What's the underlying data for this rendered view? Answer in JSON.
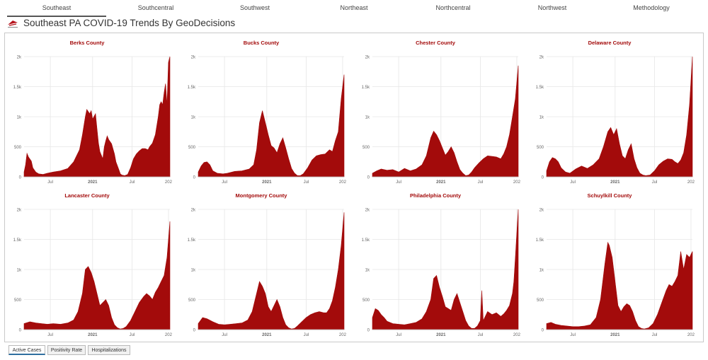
{
  "tabs": [
    {
      "label": "Southeast",
      "active": true
    },
    {
      "label": "Southcentral",
      "active": false
    },
    {
      "label": "Southwest",
      "active": false
    },
    {
      "label": "Northeast",
      "active": false
    },
    {
      "label": "Northcentral",
      "active": false
    },
    {
      "label": "Northwest",
      "active": false
    },
    {
      "label": "Methodology",
      "active": false
    }
  ],
  "header": {
    "title": "Southeast PA COVID-19 Trends By GeoDecisions",
    "logo_icon": "geodecisions-logo-icon"
  },
  "bottom_tabs": [
    {
      "label": "Active Cases",
      "active": true
    },
    {
      "label": "Positivity Rate",
      "active": false
    },
    {
      "label": "Hospitalizations",
      "active": false
    }
  ],
  "colors": {
    "series": "#a30b0b",
    "title": "#a30b0b",
    "grid": "#e6e6e6",
    "tick": "#666666"
  },
  "chart_data": [
    {
      "type": "area",
      "title": "Berks County",
      "x_ticks": [
        "Jul",
        "2021",
        "Jul",
        "202"
      ],
      "y_ticks": [
        "0",
        "500",
        "1k",
        "1.5k",
        "2k"
      ],
      "ylim": [
        0,
        2000
      ],
      "x": [
        0,
        0.01,
        0.02,
        0.03,
        0.05,
        0.06,
        0.08,
        0.1,
        0.13,
        0.16,
        0.2,
        0.25,
        0.3,
        0.34,
        0.38,
        0.4,
        0.42,
        0.43,
        0.45,
        0.46,
        0.47,
        0.49,
        0.5,
        0.51,
        0.52,
        0.54,
        0.55,
        0.56,
        0.57,
        0.58,
        0.6,
        0.62,
        0.63,
        0.65,
        0.66,
        0.67,
        0.69,
        0.71,
        0.73,
        0.75,
        0.77,
        0.79,
        0.81,
        0.83,
        0.85,
        0.86,
        0.88,
        0.9,
        0.92,
        0.93,
        0.94,
        0.95,
        0.96,
        0.97,
        0.98,
        0.99,
        1.0
      ],
      "values": [
        80,
        200,
        390,
        330,
        260,
        150,
        80,
        50,
        40,
        60,
        80,
        100,
        140,
        250,
        450,
        700,
        1000,
        1120,
        1050,
        1100,
        960,
        1050,
        800,
        560,
        420,
        300,
        500,
        600,
        680,
        620,
        550,
        380,
        250,
        120,
        50,
        30,
        20,
        40,
        150,
        300,
        380,
        430,
        470,
        470,
        450,
        500,
        560,
        700,
        1000,
        1200,
        1250,
        1200,
        1400,
        1550,
        1200,
        1900,
        2000
      ]
    },
    {
      "type": "area",
      "title": "Bucks County",
      "x_ticks": [
        "Jul",
        "2021",
        "Jul",
        "202"
      ],
      "y_ticks": [
        "0",
        "500",
        "1k",
        "1.5k",
        "2k"
      ],
      "ylim": [
        0,
        2000
      ],
      "x": [
        0,
        0.02,
        0.04,
        0.06,
        0.08,
        0.1,
        0.13,
        0.17,
        0.2,
        0.25,
        0.3,
        0.35,
        0.38,
        0.4,
        0.42,
        0.44,
        0.46,
        0.48,
        0.5,
        0.52,
        0.54,
        0.56,
        0.58,
        0.6,
        0.62,
        0.64,
        0.66,
        0.68,
        0.7,
        0.72,
        0.75,
        0.78,
        0.81,
        0.84,
        0.87,
        0.9,
        0.92,
        0.94,
        0.96,
        0.98,
        1.0
      ],
      "values": [
        80,
        180,
        240,
        250,
        200,
        100,
        60,
        50,
        60,
        90,
        100,
        130,
        200,
        450,
        900,
        1100,
        900,
        700,
        520,
        480,
        400,
        550,
        650,
        480,
        300,
        140,
        60,
        20,
        20,
        50,
        150,
        280,
        350,
        370,
        380,
        450,
        420,
        600,
        750,
        1300,
        1700
      ]
    },
    {
      "type": "area",
      "title": "Chester County",
      "x_ticks": [
        "Jul",
        "2021",
        "Jul",
        "202"
      ],
      "y_ticks": [
        "0",
        "500",
        "1k",
        "1.5k",
        "2k"
      ],
      "ylim": [
        0,
        2000
      ],
      "x": [
        0,
        0.03,
        0.06,
        0.1,
        0.14,
        0.18,
        0.22,
        0.26,
        0.3,
        0.34,
        0.37,
        0.4,
        0.42,
        0.44,
        0.46,
        0.48,
        0.5,
        0.52,
        0.54,
        0.56,
        0.58,
        0.6,
        0.62,
        0.64,
        0.66,
        0.68,
        0.7,
        0.73,
        0.76,
        0.79,
        0.82,
        0.85,
        0.88,
        0.9,
        0.92,
        0.94,
        0.96,
        0.98,
        1.0
      ],
      "values": [
        60,
        100,
        130,
        110,
        120,
        80,
        140,
        100,
        130,
        200,
        350,
        650,
        760,
        700,
        600,
        480,
        360,
        420,
        500,
        400,
        250,
        120,
        60,
        20,
        30,
        80,
        150,
        230,
        300,
        350,
        340,
        330,
        300,
        380,
        500,
        700,
        1000,
        1300,
        1850
      ]
    },
    {
      "type": "area",
      "title": "Delaware County",
      "x_ticks": [
        "Jul",
        "2021",
        "Jul",
        "202"
      ],
      "y_ticks": [
        "0",
        "500",
        "1k",
        "1.5k",
        "2k"
      ],
      "ylim": [
        0,
        2000
      ],
      "x": [
        0,
        0.02,
        0.04,
        0.06,
        0.08,
        0.1,
        0.13,
        0.16,
        0.2,
        0.24,
        0.28,
        0.32,
        0.36,
        0.39,
        0.42,
        0.44,
        0.46,
        0.48,
        0.5,
        0.52,
        0.54,
        0.56,
        0.58,
        0.6,
        0.62,
        0.64,
        0.66,
        0.68,
        0.71,
        0.74,
        0.77,
        0.8,
        0.83,
        0.86,
        0.88,
        0.9,
        0.92,
        0.94,
        0.96,
        0.98,
        1.0
      ],
      "values": [
        100,
        250,
        320,
        300,
        250,
        150,
        80,
        60,
        130,
        180,
        140,
        200,
        300,
        500,
        750,
        820,
        700,
        800,
        550,
        350,
        300,
        450,
        550,
        300,
        150,
        60,
        30,
        20,
        30,
        100,
        200,
        260,
        300,
        290,
        250,
        220,
        280,
        400,
        700,
        1200,
        2000
      ]
    },
    {
      "type": "area",
      "title": "Lancaster County",
      "x_ticks": [
        "Jul",
        "2021",
        "Jul",
        "202"
      ],
      "y_ticks": [
        "0",
        "500",
        "1k",
        "1.5k",
        "2k"
      ],
      "ylim": [
        0,
        2000
      ],
      "x": [
        0,
        0.04,
        0.08,
        0.12,
        0.16,
        0.2,
        0.25,
        0.3,
        0.34,
        0.37,
        0.4,
        0.42,
        0.44,
        0.46,
        0.48,
        0.5,
        0.52,
        0.54,
        0.56,
        0.58,
        0.6,
        0.62,
        0.64,
        0.66,
        0.68,
        0.7,
        0.73,
        0.76,
        0.79,
        0.82,
        0.84,
        0.86,
        0.88,
        0.9,
        0.92,
        0.94,
        0.96,
        0.98,
        1.0
      ],
      "values": [
        100,
        130,
        110,
        100,
        90,
        100,
        90,
        110,
        160,
        300,
        600,
        1000,
        1050,
        950,
        800,
        600,
        400,
        450,
        500,
        400,
        200,
        80,
        30,
        10,
        20,
        50,
        150,
        300,
        450,
        550,
        600,
        560,
        500,
        620,
        700,
        800,
        900,
        1200,
        1800
      ]
    },
    {
      "type": "area",
      "title": "Montgomery County",
      "x_ticks": [
        "Jul",
        "2021",
        "Jul",
        "202"
      ],
      "y_ticks": [
        "0",
        "500",
        "1k",
        "1.5k",
        "2k"
      ],
      "ylim": [
        0,
        2000
      ],
      "x": [
        0,
        0.03,
        0.06,
        0.1,
        0.14,
        0.18,
        0.22,
        0.26,
        0.3,
        0.34,
        0.37,
        0.4,
        0.42,
        0.44,
        0.46,
        0.48,
        0.5,
        0.52,
        0.54,
        0.56,
        0.58,
        0.6,
        0.62,
        0.64,
        0.66,
        0.68,
        0.71,
        0.74,
        0.77,
        0.8,
        0.83,
        0.86,
        0.88,
        0.9,
        0.92,
        0.94,
        0.96,
        0.98,
        1.0
      ],
      "values": [
        100,
        200,
        180,
        130,
        90,
        80,
        90,
        100,
        110,
        160,
        300,
        600,
        800,
        720,
        600,
        380,
        300,
        400,
        500,
        380,
        200,
        80,
        30,
        10,
        20,
        60,
        130,
        200,
        250,
        280,
        300,
        280,
        280,
        350,
        480,
        700,
        1000,
        1400,
        1950
      ]
    },
    {
      "type": "area",
      "title": "Philadelphia County",
      "x_ticks": [
        "Jul",
        "2021",
        "Jul",
        "202"
      ],
      "y_ticks": [
        "0",
        "500",
        "1k",
        "1.5k",
        "2k"
      ],
      "ylim": [
        0,
        2000
      ],
      "x": [
        0,
        0.02,
        0.04,
        0.06,
        0.08,
        0.1,
        0.14,
        0.18,
        0.22,
        0.26,
        0.3,
        0.34,
        0.37,
        0.4,
        0.42,
        0.44,
        0.46,
        0.48,
        0.5,
        0.52,
        0.54,
        0.56,
        0.58,
        0.6,
        0.62,
        0.64,
        0.66,
        0.68,
        0.7,
        0.72,
        0.74,
        0.75,
        0.76,
        0.77,
        0.79,
        0.82,
        0.85,
        0.88,
        0.9,
        0.92,
        0.94,
        0.96,
        0.97,
        0.98,
        0.99,
        1.0
      ],
      "values": [
        200,
        350,
        320,
        250,
        200,
        140,
        100,
        90,
        80,
        100,
        120,
        180,
        300,
        500,
        850,
        900,
        700,
        550,
        380,
        350,
        320,
        500,
        600,
        450,
        300,
        150,
        60,
        20,
        20,
        60,
        150,
        650,
        150,
        200,
        300,
        250,
        280,
        220,
        260,
        320,
        400,
        600,
        800,
        1200,
        1600,
        2000
      ]
    },
    {
      "type": "area",
      "title": "Schuylkill County",
      "x_ticks": [
        "Jul",
        "2021",
        "Jul",
        "202"
      ],
      "y_ticks": [
        "0",
        "500",
        "1k",
        "1.5k",
        "2k"
      ],
      "ylim": [
        0,
        2000
      ],
      "x": [
        0,
        0.03,
        0.06,
        0.1,
        0.14,
        0.18,
        0.22,
        0.26,
        0.3,
        0.34,
        0.37,
        0.4,
        0.42,
        0.43,
        0.45,
        0.47,
        0.49,
        0.51,
        0.53,
        0.55,
        0.57,
        0.59,
        0.61,
        0.63,
        0.65,
        0.67,
        0.7,
        0.73,
        0.76,
        0.79,
        0.82,
        0.84,
        0.86,
        0.88,
        0.9,
        0.92,
        0.94,
        0.96,
        0.98,
        1.0
      ],
      "values": [
        100,
        120,
        90,
        70,
        60,
        50,
        50,
        60,
        80,
        200,
        500,
        1100,
        1450,
        1400,
        1200,
        800,
        400,
        300,
        380,
        430,
        400,
        300,
        150,
        50,
        20,
        10,
        30,
        100,
        250,
        450,
        650,
        750,
        720,
        800,
        900,
        1300,
        1000,
        1250,
        1200,
        1300
      ]
    }
  ]
}
